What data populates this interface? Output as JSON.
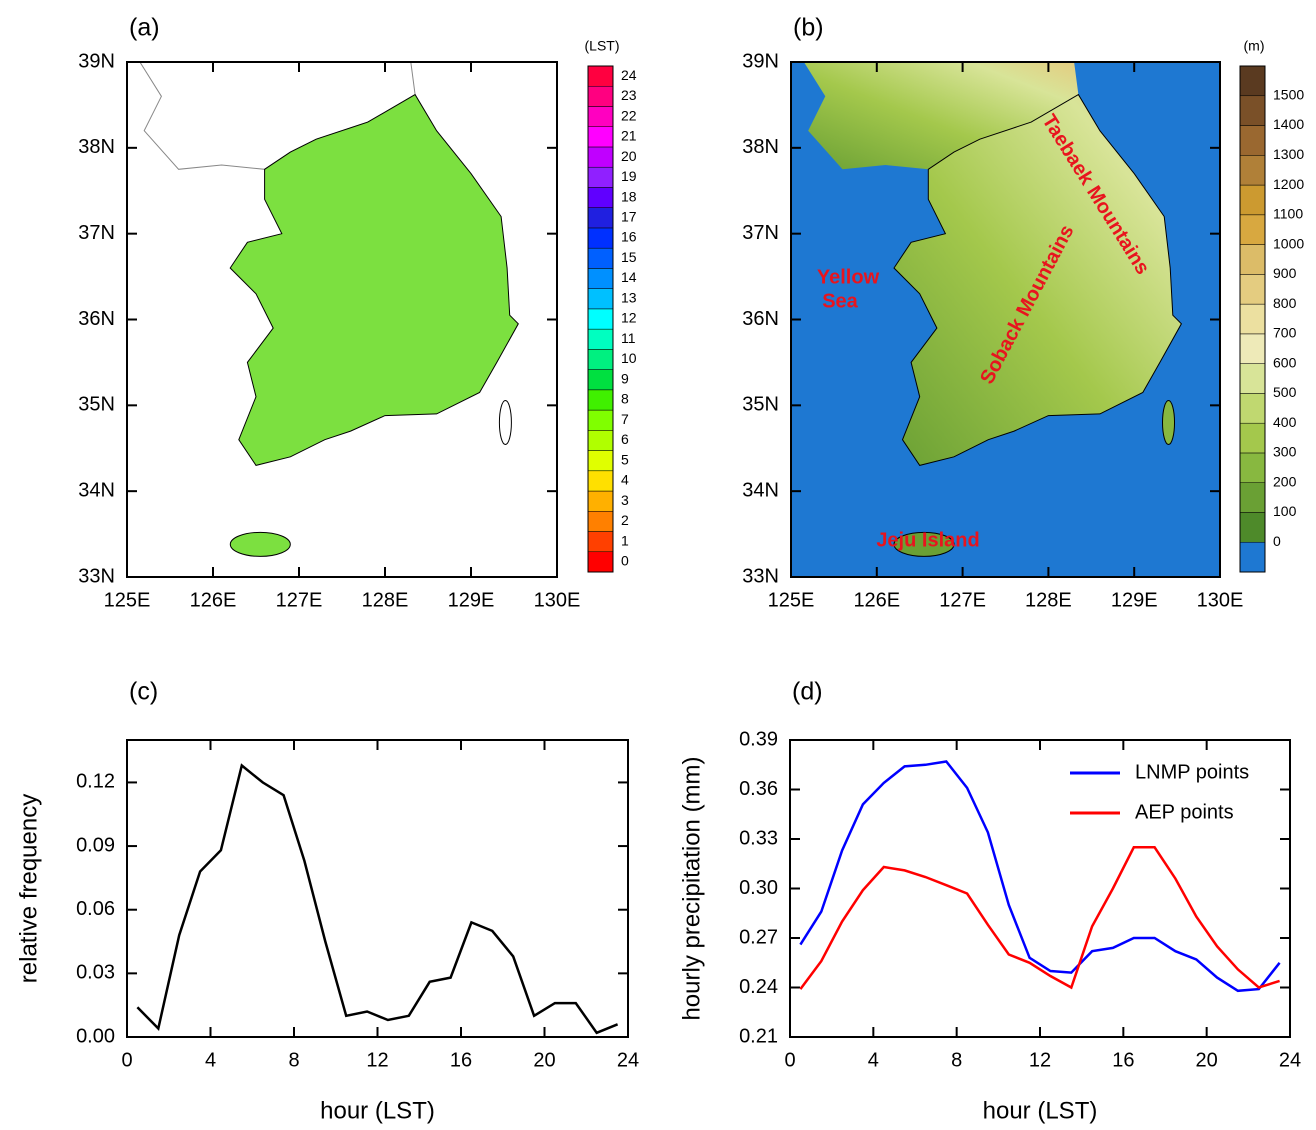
{
  "chart_data": [
    {
      "type": "map",
      "panel": "(a)",
      "xlim": [
        125,
        130
      ],
      "ylim": [
        33,
        39
      ],
      "xticks": [
        {
          "value": 125,
          "label": "125E"
        },
        {
          "value": 126,
          "label": "126E"
        },
        {
          "value": 127,
          "label": "127E"
        },
        {
          "value": 128,
          "label": "128E"
        },
        {
          "value": 129,
          "label": "129E"
        },
        {
          "value": 130,
          "label": "130E"
        }
      ],
      "yticks": [
        {
          "value": 33,
          "label": "33N"
        },
        {
          "value": 34,
          "label": "34N"
        },
        {
          "value": 35,
          "label": "35N"
        },
        {
          "value": 36,
          "label": "36N"
        },
        {
          "value": 37,
          "label": "37N"
        },
        {
          "value": 38,
          "label": "38N"
        },
        {
          "value": 39,
          "label": "39N"
        }
      ],
      "land_color": "#7ce040",
      "colorbar": {
        "title": "(LST)",
        "placement": "center",
        "ticks": [
          0,
          1,
          2,
          3,
          4,
          5,
          6,
          7,
          8,
          9,
          10,
          11,
          12,
          13,
          14,
          15,
          16,
          17,
          18,
          19,
          20,
          21,
          22,
          23,
          24
        ],
        "colors": [
          "#ff0000",
          "#ff4000",
          "#ff8000",
          "#ffb000",
          "#ffe000",
          "#e0ff00",
          "#b0ff00",
          "#80ff00",
          "#40f000",
          "#00e040",
          "#00f080",
          "#00ffc0",
          "#00ffff",
          "#00c0ff",
          "#0090ff",
          "#0060ff",
          "#0030ff",
          "#2020e0",
          "#6000ff",
          "#9020ff",
          "#c000ff",
          "#ff00ff",
          "#ff00c0",
          "#ff0080",
          "#ff0040"
        ]
      }
    },
    {
      "type": "map",
      "panel": "(b)",
      "xlim": [
        125,
        130
      ],
      "ylim": [
        33,
        39
      ],
      "xticks": [
        {
          "value": 125,
          "label": "125E"
        },
        {
          "value": 126,
          "label": "126E"
        },
        {
          "value": 127,
          "label": "127E"
        },
        {
          "value": 128,
          "label": "128E"
        },
        {
          "value": 129,
          "label": "129E"
        },
        {
          "value": 130,
          "label": "130E"
        }
      ],
      "yticks": [
        {
          "value": 33,
          "label": "33N"
        },
        {
          "value": 34,
          "label": "34N"
        },
        {
          "value": 35,
          "label": "35N"
        },
        {
          "value": 36,
          "label": "36N"
        },
        {
          "value": 37,
          "label": "37N"
        },
        {
          "value": 38,
          "label": "38N"
        },
        {
          "value": 39,
          "label": "39N"
        }
      ],
      "ocean_color": "#1e78d2",
      "annotations": [
        "Yellow",
        "Sea",
        "Taebaek Mountains",
        "Soback Mountains",
        "Jeju Island"
      ],
      "colorbar": {
        "title": "(m)",
        "placement": "boundary",
        "ticks": [
          0,
          100,
          200,
          300,
          400,
          500,
          600,
          700,
          800,
          900,
          1000,
          1100,
          1200,
          1300,
          1400,
          1500
        ],
        "colors": [
          "#1e78d2",
          "#4e8a2a",
          "#6aa034",
          "#88b840",
          "#a4c84c",
          "#c0d870",
          "#d8e498",
          "#eeeab8",
          "#ece0a0",
          "#e4cc80",
          "#dcbc68",
          "#d8a840",
          "#cc9a30",
          "#b08038",
          "#9a6830",
          "#7a5028",
          "#5a3a20"
        ]
      }
    },
    {
      "type": "line",
      "panel": "(c)",
      "xlabel": "hour (LST)",
      "ylabel": "relative frequency",
      "xlim": [
        0,
        24
      ],
      "xticks": [
        0,
        4,
        8,
        12,
        16,
        20,
        24
      ],
      "ylim": [
        0,
        0.14
      ],
      "yticks": [
        {
          "value": 0,
          "label": "0.00"
        },
        0.03,
        0.06,
        0.09,
        0.12
      ],
      "x": [
        0.5,
        1.5,
        2.5,
        3.5,
        4.5,
        5.5,
        6.5,
        7.5,
        8.5,
        9.5,
        10.5,
        11.5,
        12.5,
        13.5,
        14.5,
        15.5,
        16.5,
        17.5,
        18.5,
        19.5,
        20.5,
        21.5,
        22.5,
        23.5
      ],
      "series": [
        {
          "color": "#000000",
          "values": [
            0.014,
            0.004,
            0.048,
            0.078,
            0.088,
            0.128,
            0.12,
            0.114,
            0.083,
            0.045,
            0.01,
            0.012,
            0.008,
            0.01,
            0.026,
            0.028,
            0.054,
            0.05,
            0.038,
            0.01,
            0.016,
            0.016,
            0.002,
            0.006
          ]
        }
      ]
    },
    {
      "type": "line",
      "panel": "(d)",
      "xlabel": "hour (LST)",
      "ylabel": "hourly precipitation (mm)",
      "xlim": [
        0,
        24
      ],
      "xticks": [
        0,
        4,
        8,
        12,
        16,
        20,
        24
      ],
      "ylim": [
        0.21,
        0.39
      ],
      "yticks": [
        0.21,
        0.24,
        0.27,
        {
          "value": 0.3,
          "label": "0.30"
        },
        0.33,
        0.36,
        0.39
      ],
      "legend": "upper right",
      "x": [
        0.5,
        1.5,
        2.5,
        3.5,
        4.5,
        5.5,
        6.5,
        7.5,
        8.5,
        9.5,
        10.5,
        11.5,
        12.5,
        13.5,
        14.5,
        15.5,
        16.5,
        17.5,
        18.5,
        19.5,
        20.5,
        21.5,
        22.5,
        23.5
      ],
      "series": [
        {
          "name": "LNMP points",
          "color": "#0000ff",
          "values": [
            0.266,
            0.286,
            0.323,
            0.351,
            0.364,
            0.374,
            0.375,
            0.377,
            0.361,
            0.334,
            0.29,
            0.258,
            0.25,
            0.249,
            0.262,
            0.264,
            0.27,
            0.27,
            0.262,
            0.257,
            0.246,
            0.238,
            0.239,
            0.255
          ]
        },
        {
          "name": "AEP points",
          "color": "#ff0000",
          "values": [
            0.239,
            0.256,
            0.28,
            0.299,
            0.313,
            0.311,
            0.307,
            0.302,
            0.297,
            0.278,
            0.26,
            0.255,
            0.247,
            0.24,
            0.277,
            0.3,
            0.325,
            0.325,
            0.306,
            0.283,
            0.265,
            0.251,
            0.24,
            0.244
          ]
        }
      ]
    }
  ]
}
